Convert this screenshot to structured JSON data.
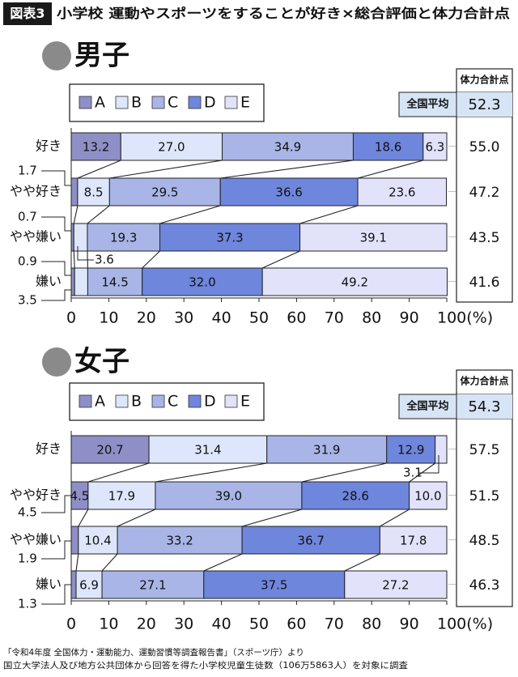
{
  "header": {
    "tag": "図表3",
    "title": "小学校 運動やスポーツをすることが好き×総合評価と体力合計点"
  },
  "legend_labels": [
    "A",
    "B",
    "C",
    "D",
    "E"
  ],
  "colors": {
    "A": "#8f8fc7",
    "B": "#dde6fb",
    "C": "#a8b5e6",
    "D": "#6f86dd",
    "E": "#e2e2fb",
    "header_bg": "#1a1a1a",
    "panel_bullet": "#8a8a8a",
    "avg_bg": "#d6e4f6"
  },
  "score_header": "体力合計点",
  "avg_label": "全国平均",
  "percent_unit": "100(%)",
  "chart_data": [
    {
      "type": "bar",
      "stacked": true,
      "orientation": "horizontal",
      "title": "男子",
      "categories": [
        "好き",
        "やや好き",
        "やや嫌い",
        "嫌い"
      ],
      "series": [
        {
          "name": "A",
          "values": [
            13.2,
            1.7,
            0.7,
            0.9
          ]
        },
        {
          "name": "B",
          "values": [
            27.0,
            8.5,
            3.6,
            3.5
          ]
        },
        {
          "name": "C",
          "values": [
            34.9,
            29.5,
            19.3,
            14.5
          ]
        },
        {
          "name": "D",
          "values": [
            18.6,
            36.6,
            37.3,
            32.0
          ]
        },
        {
          "name": "E",
          "values": [
            6.3,
            23.6,
            39.1,
            49.2
          ]
        }
      ],
      "scores": [
        "55.0",
        "47.2",
        "43.5",
        "41.6"
      ],
      "national_avg": "52.3",
      "xlim": [
        0,
        100
      ],
      "xticks": [
        0,
        10,
        20,
        30,
        40,
        50,
        60,
        70,
        80,
        90,
        100
      ],
      "xlabel": "(%)",
      "legend": "top-left",
      "grid": false
    },
    {
      "type": "bar",
      "stacked": true,
      "orientation": "horizontal",
      "title": "女子",
      "categories": [
        "好き",
        "やや好き",
        "やや嫌い",
        "嫌い"
      ],
      "series": [
        {
          "name": "A",
          "values": [
            20.7,
            4.5,
            1.9,
            1.3
          ]
        },
        {
          "name": "B",
          "values": [
            31.4,
            17.9,
            10.4,
            6.9
          ]
        },
        {
          "name": "C",
          "values": [
            31.9,
            39.0,
            33.2,
            27.1
          ]
        },
        {
          "name": "D",
          "values": [
            12.9,
            28.6,
            36.7,
            37.5
          ]
        },
        {
          "name": "E",
          "values": [
            3.1,
            10.0,
            17.8,
            27.2
          ]
        }
      ],
      "scores": [
        "57.5",
        "51.5",
        "48.5",
        "46.3"
      ],
      "national_avg": "54.3",
      "xlim": [
        0,
        100
      ],
      "xticks": [
        0,
        10,
        20,
        30,
        40,
        50,
        60,
        70,
        80,
        90,
        100
      ],
      "xlabel": "(%)",
      "legend": "top-left",
      "grid": false
    }
  ],
  "footer": {
    "line1": "「令和4年度 全国体力・運動能力、運動習慣等調査報告書」（スポーツ庁）より",
    "line2": "国立大学法人及び地方公共団体から回答を得た小学校児童生徒数（106万5863人）を対象に調査"
  }
}
